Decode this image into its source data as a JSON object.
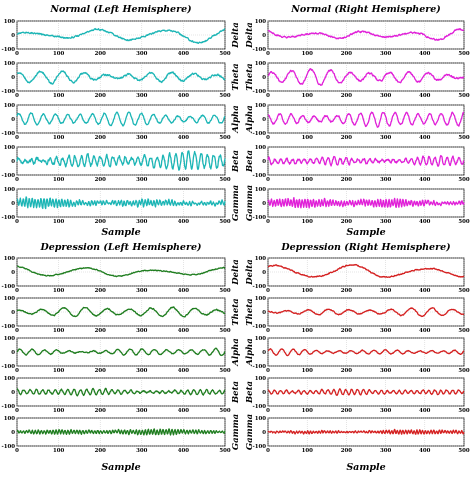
{
  "chart_data": [
    {
      "type": "line",
      "title": "Normal (Left Hemisphere)",
      "xlabel": "Sample",
      "color": "#1bb5b5",
      "xlim": [
        0,
        500
      ],
      "xticks": [
        "0",
        "100",
        "200",
        "300",
        "400",
        "500"
      ],
      "ylim": [
        -100,
        100
      ],
      "yticks": [
        "100",
        "0",
        "-100"
      ],
      "series": [
        {
          "name": "Delta",
          "amp": 55,
          "freq": 3.1,
          "noise": 0.2,
          "phase": 0.3
        },
        {
          "name": "Theta",
          "amp": 55,
          "freq": 9.5,
          "noise": 0.25,
          "phase": 1.1
        },
        {
          "name": "Alpha",
          "amp": 48,
          "freq": 17,
          "noise": 0.25,
          "phase": 0.6
        },
        {
          "name": "Beta",
          "amp": 60,
          "freq": 33,
          "noise": 0.45,
          "phase": 0.2
        },
        {
          "name": "Gamma",
          "amp": 35,
          "freq": 70,
          "noise": 0.55,
          "phase": 0.9
        }
      ]
    },
    {
      "type": "line",
      "title": "Normal (Right Hemisphere)",
      "xlabel": "Sample",
      "color": "#e020d8",
      "xlim": [
        0,
        500
      ],
      "xticks": [
        "0",
        "100",
        "200",
        "300",
        "400",
        "500"
      ],
      "ylim": [
        -100,
        100
      ],
      "yticks": [
        "100",
        "0",
        "-100"
      ],
      "series": [
        {
          "name": "Delta",
          "amp": 45,
          "freq": 4.0,
          "noise": 0.25,
          "phase": 2.0
        },
        {
          "name": "Theta",
          "amp": 55,
          "freq": 10,
          "noise": 0.25,
          "phase": 0.4
        },
        {
          "name": "Alpha",
          "amp": 55,
          "freq": 17,
          "noise": 0.25,
          "phase": 1.5
        },
        {
          "name": "Beta",
          "amp": 40,
          "freq": 33,
          "noise": 0.45,
          "phase": 0.7
        },
        {
          "name": "Gamma",
          "amp": 30,
          "freq": 70,
          "noise": 0.55,
          "phase": 0.2
        }
      ]
    },
    {
      "type": "line",
      "title": "Depression (Left Hemisphere)",
      "xlabel": "Sample",
      "color": "#1f7d1f",
      "xlim": [
        0,
        500
      ],
      "xticks": [
        "0",
        "100",
        "200",
        "300",
        "400",
        "500"
      ],
      "ylim": [
        -100,
        100
      ],
      "yticks": [
        "100",
        "0",
        "-100"
      ],
      "series": [
        {
          "name": "Delta",
          "amp": 45,
          "freq": 3.0,
          "noise": 0.15,
          "phase": 1.7
        },
        {
          "name": "Theta",
          "amp": 35,
          "freq": 9.5,
          "noise": 0.25,
          "phase": 0.8
        },
        {
          "name": "Alpha",
          "amp": 30,
          "freq": 17,
          "noise": 0.25,
          "phase": 0.1
        },
        {
          "name": "Beta",
          "amp": 25,
          "freq": 33,
          "noise": 0.45,
          "phase": 1.2
        },
        {
          "name": "Gamma",
          "amp": 18,
          "freq": 70,
          "noise": 0.55,
          "phase": 0.5
        }
      ]
    },
    {
      "type": "line",
      "title": "Depression (Right Hemisphere)",
      "xlabel": "Sample",
      "color": "#d42020",
      "xlim": [
        0,
        500
      ],
      "xticks": [
        "0",
        "100",
        "200",
        "300",
        "400",
        "500"
      ],
      "ylim": [
        -100,
        100
      ],
      "yticks": [
        "100",
        "0",
        "-100"
      ],
      "series": [
        {
          "name": "Delta",
          "amp": 55,
          "freq": 2.6,
          "noise": 0.15,
          "phase": 0.9
        },
        {
          "name": "Theta",
          "amp": 30,
          "freq": 9.5,
          "noise": 0.25,
          "phase": 1.9
        },
        {
          "name": "Alpha",
          "amp": 25,
          "freq": 17,
          "noise": 0.25,
          "phase": 0.4
        },
        {
          "name": "Beta",
          "amp": 20,
          "freq": 33,
          "noise": 0.45,
          "phase": 1.0
        },
        {
          "name": "Gamma",
          "amp": 15,
          "freq": 70,
          "noise": 0.55,
          "phase": 0.3
        }
      ]
    }
  ]
}
